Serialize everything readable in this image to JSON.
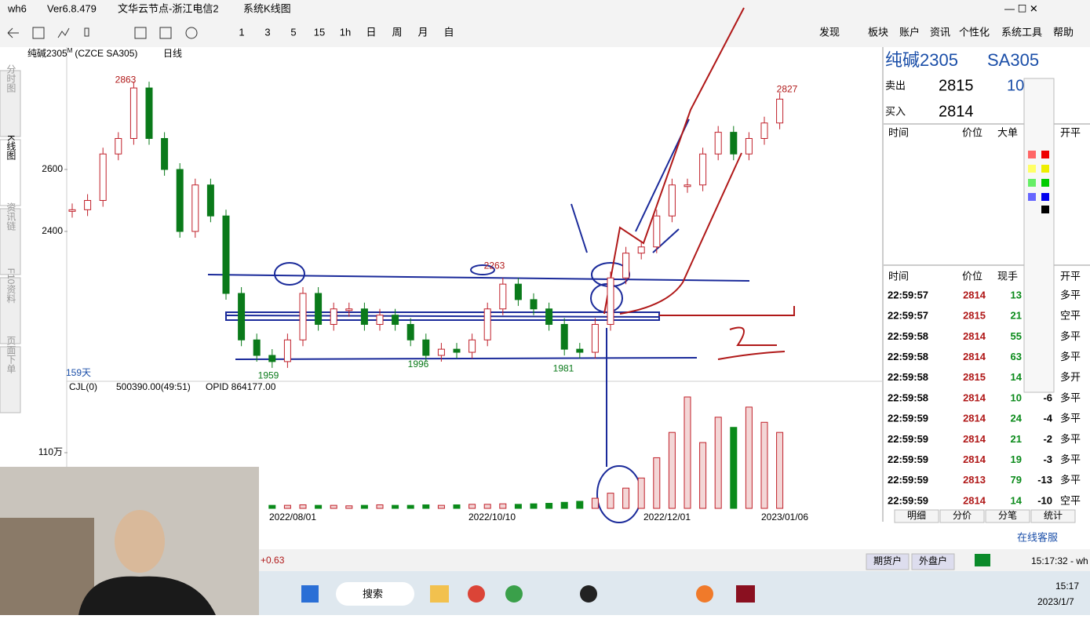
{
  "title_bar": {
    "app": "wh6",
    "version": "Ver6.8.479",
    "node": "文华云节点-浙江电信2",
    "view": "系统K线图"
  },
  "toolbar": {
    "periods": [
      "1",
      "3",
      "5",
      "15",
      "1h",
      "日",
      "周",
      "月",
      "自"
    ],
    "menu": [
      "发现",
      "板块",
      "账户",
      "资讯",
      "个性化",
      "系统工具",
      "帮助"
    ]
  },
  "left_tabs": [
    "分时图",
    "K线图",
    "资讯链",
    "F10资料",
    "页面下单"
  ],
  "chart": {
    "symbol": "纯碱2305",
    "suffix": "M",
    "code": "(CZCE SA305)",
    "period": "日线",
    "yticks": [
      2400,
      2600
    ],
    "price_labels": [
      2863,
      2827,
      2263,
      1959,
      1996,
      1981
    ],
    "days": "159天",
    "closes": [
      2470,
      2500,
      2650,
      2700,
      2863,
      2700,
      2600,
      2400,
      2550,
      2450,
      2200,
      2050,
      2000,
      1980,
      2050,
      2200,
      2100,
      2150,
      2150,
      2100,
      2130,
      2100,
      2050,
      2000,
      2020,
      2010,
      2050,
      2150,
      2230,
      2180,
      2150,
      2100,
      2020,
      2010,
      2100,
      2250,
      2330,
      2350,
      2450,
      2550,
      2550,
      2650,
      2720,
      2650,
      2700,
      2750,
      2827
    ],
    "indicator": {
      "name": "CJL(0)",
      "value": "500390.00(49:51)",
      "opid": "OPID 864177.00",
      "ytick": {
        "value": 110,
        "label": "110万"
      },
      "volumes": [
        5,
        5,
        6,
        6,
        7,
        6,
        5,
        6,
        5,
        6,
        7,
        6,
        5,
        6,
        6,
        7,
        6,
        6,
        5,
        6,
        7,
        6,
        6,
        7,
        6,
        7,
        8,
        8,
        9,
        8,
        9,
        10,
        12,
        14,
        20,
        30,
        40,
        60,
        100,
        150,
        220,
        130,
        180,
        160,
        200,
        170,
        150
      ]
    },
    "dates": [
      "2022/08/01",
      "2022/10/10",
      "2022/12/01",
      "2023/01/06"
    ]
  },
  "quote": {
    "name": "纯碱2305",
    "code": "SA305",
    "ask_label": "卖出",
    "ask": 2815,
    "ask_vol": 10,
    "bid_label": "买入",
    "bid": 2814,
    "headers": [
      "时间",
      "价位",
      "大单",
      "开平"
    ],
    "tick_headers": [
      "时间",
      "价位",
      "现手",
      "开平"
    ],
    "ticks": [
      {
        "time": "22:59:57",
        "price": 2814,
        "qty": 13,
        "type": "多平"
      },
      {
        "time": "22:59:57",
        "price": 2815,
        "qty": 21,
        "type": "空平"
      },
      {
        "time": "22:59:58",
        "price": 2814,
        "qty": 55,
        "type": "多平"
      },
      {
        "time": "22:59:58",
        "price": 2814,
        "qty": 63,
        "type": "多平"
      },
      {
        "time": "22:59:58",
        "price": 2815,
        "qty": 14,
        "type": "多开"
      },
      {
        "time": "22:59:58",
        "price": 2814,
        "qty": 10,
        "change": -6,
        "type": "多平"
      },
      {
        "time": "22:59:59",
        "price": 2814,
        "qty": 24,
        "change": -4,
        "type": "多平"
      },
      {
        "time": "22:59:59",
        "price": 2814,
        "qty": 21,
        "change": -2,
        "type": "多平"
      },
      {
        "time": "22:59:59",
        "price": 2814,
        "qty": 19,
        "change": -3,
        "type": "多平"
      },
      {
        "time": "22:59:59",
        "price": 2813,
        "qty": 79,
        "change": -13,
        "type": "多平"
      },
      {
        "time": "22:59:59",
        "price": 2814,
        "qty": 14,
        "change": -10,
        "type": "空平"
      }
    ],
    "tabs": [
      "明细",
      "分价",
      "分笔",
      "统计"
    ],
    "service": "在线客服"
  },
  "status": {
    "change": "+0.63",
    "accounts": [
      "期货户",
      "外盘户"
    ],
    "clock": "15:17:32 - wh"
  },
  "taskbar": {
    "search": "搜索",
    "time": "15:17",
    "date": "2023/1/7"
  }
}
